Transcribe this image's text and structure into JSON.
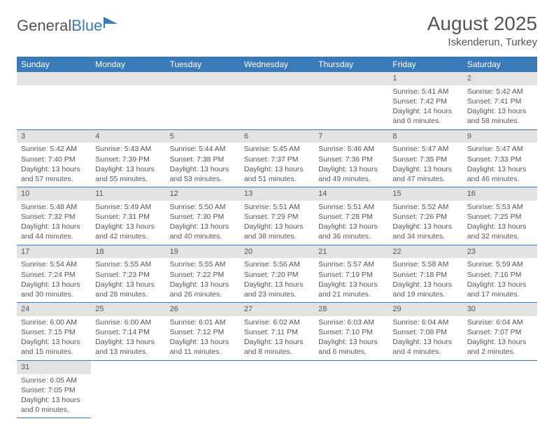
{
  "logo": {
    "text1": "General",
    "text2": "Blue"
  },
  "title": "August 2025",
  "location": "Iskenderun, Turkey",
  "colors": {
    "header_bg": "#3a7ab8",
    "header_text": "#ffffff",
    "daynum_bg": "#e3e3e3",
    "row_border": "#3a7ab8",
    "text": "#555555",
    "background": "#ffffff"
  },
  "typography": {
    "title_fontsize": 28,
    "location_fontsize": 15,
    "dayheader_fontsize": 12,
    "cell_fontsize": 10.5
  },
  "weekdays": [
    "Sunday",
    "Monday",
    "Tuesday",
    "Wednesday",
    "Thursday",
    "Friday",
    "Saturday"
  ],
  "first_weekday_index": 5,
  "days": [
    {
      "n": 1,
      "sunrise": "Sunrise: 5:41 AM",
      "sunset": "Sunset: 7:42 PM",
      "daylight": "Daylight: 14 hours and 0 minutes."
    },
    {
      "n": 2,
      "sunrise": "Sunrise: 5:42 AM",
      "sunset": "Sunset: 7:41 PM",
      "daylight": "Daylight: 13 hours and 58 minutes."
    },
    {
      "n": 3,
      "sunrise": "Sunrise: 5:42 AM",
      "sunset": "Sunset: 7:40 PM",
      "daylight": "Daylight: 13 hours and 57 minutes."
    },
    {
      "n": 4,
      "sunrise": "Sunrise: 5:43 AM",
      "sunset": "Sunset: 7:39 PM",
      "daylight": "Daylight: 13 hours and 55 minutes."
    },
    {
      "n": 5,
      "sunrise": "Sunrise: 5:44 AM",
      "sunset": "Sunset: 7:38 PM",
      "daylight": "Daylight: 13 hours and 53 minutes."
    },
    {
      "n": 6,
      "sunrise": "Sunrise: 5:45 AM",
      "sunset": "Sunset: 7:37 PM",
      "daylight": "Daylight: 13 hours and 51 minutes."
    },
    {
      "n": 7,
      "sunrise": "Sunrise: 5:46 AM",
      "sunset": "Sunset: 7:36 PM",
      "daylight": "Daylight: 13 hours and 49 minutes."
    },
    {
      "n": 8,
      "sunrise": "Sunrise: 5:47 AM",
      "sunset": "Sunset: 7:35 PM",
      "daylight": "Daylight: 13 hours and 47 minutes."
    },
    {
      "n": 9,
      "sunrise": "Sunrise: 5:47 AM",
      "sunset": "Sunset: 7:33 PM",
      "daylight": "Daylight: 13 hours and 46 minutes."
    },
    {
      "n": 10,
      "sunrise": "Sunrise: 5:48 AM",
      "sunset": "Sunset: 7:32 PM",
      "daylight": "Daylight: 13 hours and 44 minutes."
    },
    {
      "n": 11,
      "sunrise": "Sunrise: 5:49 AM",
      "sunset": "Sunset: 7:31 PM",
      "daylight": "Daylight: 13 hours and 42 minutes."
    },
    {
      "n": 12,
      "sunrise": "Sunrise: 5:50 AM",
      "sunset": "Sunset: 7:30 PM",
      "daylight": "Daylight: 13 hours and 40 minutes."
    },
    {
      "n": 13,
      "sunrise": "Sunrise: 5:51 AM",
      "sunset": "Sunset: 7:29 PM",
      "daylight": "Daylight: 13 hours and 38 minutes."
    },
    {
      "n": 14,
      "sunrise": "Sunrise: 5:51 AM",
      "sunset": "Sunset: 7:28 PM",
      "daylight": "Daylight: 13 hours and 36 minutes."
    },
    {
      "n": 15,
      "sunrise": "Sunrise: 5:52 AM",
      "sunset": "Sunset: 7:26 PM",
      "daylight": "Daylight: 13 hours and 34 minutes."
    },
    {
      "n": 16,
      "sunrise": "Sunrise: 5:53 AM",
      "sunset": "Sunset: 7:25 PM",
      "daylight": "Daylight: 13 hours and 32 minutes."
    },
    {
      "n": 17,
      "sunrise": "Sunrise: 5:54 AM",
      "sunset": "Sunset: 7:24 PM",
      "daylight": "Daylight: 13 hours and 30 minutes."
    },
    {
      "n": 18,
      "sunrise": "Sunrise: 5:55 AM",
      "sunset": "Sunset: 7:23 PM",
      "daylight": "Daylight: 13 hours and 28 minutes."
    },
    {
      "n": 19,
      "sunrise": "Sunrise: 5:55 AM",
      "sunset": "Sunset: 7:22 PM",
      "daylight": "Daylight: 13 hours and 26 minutes."
    },
    {
      "n": 20,
      "sunrise": "Sunrise: 5:56 AM",
      "sunset": "Sunset: 7:20 PM",
      "daylight": "Daylight: 13 hours and 23 minutes."
    },
    {
      "n": 21,
      "sunrise": "Sunrise: 5:57 AM",
      "sunset": "Sunset: 7:19 PM",
      "daylight": "Daylight: 13 hours and 21 minutes."
    },
    {
      "n": 22,
      "sunrise": "Sunrise: 5:58 AM",
      "sunset": "Sunset: 7:18 PM",
      "daylight": "Daylight: 13 hours and 19 minutes."
    },
    {
      "n": 23,
      "sunrise": "Sunrise: 5:59 AM",
      "sunset": "Sunset: 7:16 PM",
      "daylight": "Daylight: 13 hours and 17 minutes."
    },
    {
      "n": 24,
      "sunrise": "Sunrise: 6:00 AM",
      "sunset": "Sunset: 7:15 PM",
      "daylight": "Daylight: 13 hours and 15 minutes."
    },
    {
      "n": 25,
      "sunrise": "Sunrise: 6:00 AM",
      "sunset": "Sunset: 7:14 PM",
      "daylight": "Daylight: 13 hours and 13 minutes."
    },
    {
      "n": 26,
      "sunrise": "Sunrise: 6:01 AM",
      "sunset": "Sunset: 7:12 PM",
      "daylight": "Daylight: 13 hours and 11 minutes."
    },
    {
      "n": 27,
      "sunrise": "Sunrise: 6:02 AM",
      "sunset": "Sunset: 7:11 PM",
      "daylight": "Daylight: 13 hours and 8 minutes."
    },
    {
      "n": 28,
      "sunrise": "Sunrise: 6:03 AM",
      "sunset": "Sunset: 7:10 PM",
      "daylight": "Daylight: 13 hours and 6 minutes."
    },
    {
      "n": 29,
      "sunrise": "Sunrise: 6:04 AM",
      "sunset": "Sunset: 7:08 PM",
      "daylight": "Daylight: 13 hours and 4 minutes."
    },
    {
      "n": 30,
      "sunrise": "Sunrise: 6:04 AM",
      "sunset": "Sunset: 7:07 PM",
      "daylight": "Daylight: 13 hours and 2 minutes."
    },
    {
      "n": 31,
      "sunrise": "Sunrise: 6:05 AM",
      "sunset": "Sunset: 7:05 PM",
      "daylight": "Daylight: 13 hours and 0 minutes."
    }
  ]
}
